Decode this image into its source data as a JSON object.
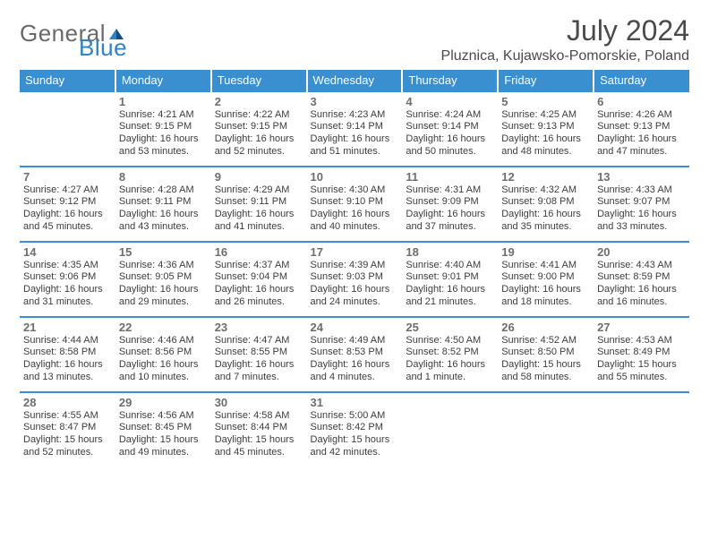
{
  "brand": {
    "word1": "General",
    "word2": "Blue",
    "mark_color": "#1e6fb0"
  },
  "title": "July 2024",
  "location": "Pluznica, Kujawsko-Pomorskie, Poland",
  "colors": {
    "header_bg": "#3a8fd0",
    "header_text": "#ffffff",
    "row_divider": "#3a8fd0",
    "body_text": "#3d3d3d",
    "muted_text": "#6e6e6e",
    "page_bg": "#ffffff"
  },
  "typography": {
    "title_fontsize": 32,
    "location_fontsize": 16,
    "weekday_fontsize": 13,
    "daynum_fontsize": 13,
    "body_fontsize": 11
  },
  "labels": {
    "sunrise": "Sunrise:",
    "sunset": "Sunset:",
    "daylight": "Daylight:"
  },
  "weekdays": [
    "Sunday",
    "Monday",
    "Tuesday",
    "Wednesday",
    "Thursday",
    "Friday",
    "Saturday"
  ],
  "weeks": [
    [
      null,
      {
        "n": "1",
        "sunrise": "4:21 AM",
        "sunset": "9:15 PM",
        "daylight_l1": "16 hours",
        "daylight_l2": "and 53 minutes."
      },
      {
        "n": "2",
        "sunrise": "4:22 AM",
        "sunset": "9:15 PM",
        "daylight_l1": "16 hours",
        "daylight_l2": "and 52 minutes."
      },
      {
        "n": "3",
        "sunrise": "4:23 AM",
        "sunset": "9:14 PM",
        "daylight_l1": "16 hours",
        "daylight_l2": "and 51 minutes."
      },
      {
        "n": "4",
        "sunrise": "4:24 AM",
        "sunset": "9:14 PM",
        "daylight_l1": "16 hours",
        "daylight_l2": "and 50 minutes."
      },
      {
        "n": "5",
        "sunrise": "4:25 AM",
        "sunset": "9:13 PM",
        "daylight_l1": "16 hours",
        "daylight_l2": "and 48 minutes."
      },
      {
        "n": "6",
        "sunrise": "4:26 AM",
        "sunset": "9:13 PM",
        "daylight_l1": "16 hours",
        "daylight_l2": "and 47 minutes."
      }
    ],
    [
      {
        "n": "7",
        "sunrise": "4:27 AM",
        "sunset": "9:12 PM",
        "daylight_l1": "16 hours",
        "daylight_l2": "and 45 minutes."
      },
      {
        "n": "8",
        "sunrise": "4:28 AM",
        "sunset": "9:11 PM",
        "daylight_l1": "16 hours",
        "daylight_l2": "and 43 minutes."
      },
      {
        "n": "9",
        "sunrise": "4:29 AM",
        "sunset": "9:11 PM",
        "daylight_l1": "16 hours",
        "daylight_l2": "and 41 minutes."
      },
      {
        "n": "10",
        "sunrise": "4:30 AM",
        "sunset": "9:10 PM",
        "daylight_l1": "16 hours",
        "daylight_l2": "and 40 minutes."
      },
      {
        "n": "11",
        "sunrise": "4:31 AM",
        "sunset": "9:09 PM",
        "daylight_l1": "16 hours",
        "daylight_l2": "and 37 minutes."
      },
      {
        "n": "12",
        "sunrise": "4:32 AM",
        "sunset": "9:08 PM",
        "daylight_l1": "16 hours",
        "daylight_l2": "and 35 minutes."
      },
      {
        "n": "13",
        "sunrise": "4:33 AM",
        "sunset": "9:07 PM",
        "daylight_l1": "16 hours",
        "daylight_l2": "and 33 minutes."
      }
    ],
    [
      {
        "n": "14",
        "sunrise": "4:35 AM",
        "sunset": "9:06 PM",
        "daylight_l1": "16 hours",
        "daylight_l2": "and 31 minutes."
      },
      {
        "n": "15",
        "sunrise": "4:36 AM",
        "sunset": "9:05 PM",
        "daylight_l1": "16 hours",
        "daylight_l2": "and 29 minutes."
      },
      {
        "n": "16",
        "sunrise": "4:37 AM",
        "sunset": "9:04 PM",
        "daylight_l1": "16 hours",
        "daylight_l2": "and 26 minutes."
      },
      {
        "n": "17",
        "sunrise": "4:39 AM",
        "sunset": "9:03 PM",
        "daylight_l1": "16 hours",
        "daylight_l2": "and 24 minutes."
      },
      {
        "n": "18",
        "sunrise": "4:40 AM",
        "sunset": "9:01 PM",
        "daylight_l1": "16 hours",
        "daylight_l2": "and 21 minutes."
      },
      {
        "n": "19",
        "sunrise": "4:41 AM",
        "sunset": "9:00 PM",
        "daylight_l1": "16 hours",
        "daylight_l2": "and 18 minutes."
      },
      {
        "n": "20",
        "sunrise": "4:43 AM",
        "sunset": "8:59 PM",
        "daylight_l1": "16 hours",
        "daylight_l2": "and 16 minutes."
      }
    ],
    [
      {
        "n": "21",
        "sunrise": "4:44 AM",
        "sunset": "8:58 PM",
        "daylight_l1": "16 hours",
        "daylight_l2": "and 13 minutes."
      },
      {
        "n": "22",
        "sunrise": "4:46 AM",
        "sunset": "8:56 PM",
        "daylight_l1": "16 hours",
        "daylight_l2": "and 10 minutes."
      },
      {
        "n": "23",
        "sunrise": "4:47 AM",
        "sunset": "8:55 PM",
        "daylight_l1": "16 hours",
        "daylight_l2": "and 7 minutes."
      },
      {
        "n": "24",
        "sunrise": "4:49 AM",
        "sunset": "8:53 PM",
        "daylight_l1": "16 hours",
        "daylight_l2": "and 4 minutes."
      },
      {
        "n": "25",
        "sunrise": "4:50 AM",
        "sunset": "8:52 PM",
        "daylight_l1": "16 hours",
        "daylight_l2": "and 1 minute."
      },
      {
        "n": "26",
        "sunrise": "4:52 AM",
        "sunset": "8:50 PM",
        "daylight_l1": "15 hours",
        "daylight_l2": "and 58 minutes."
      },
      {
        "n": "27",
        "sunrise": "4:53 AM",
        "sunset": "8:49 PM",
        "daylight_l1": "15 hours",
        "daylight_l2": "and 55 minutes."
      }
    ],
    [
      {
        "n": "28",
        "sunrise": "4:55 AM",
        "sunset": "8:47 PM",
        "daylight_l1": "15 hours",
        "daylight_l2": "and 52 minutes."
      },
      {
        "n": "29",
        "sunrise": "4:56 AM",
        "sunset": "8:45 PM",
        "daylight_l1": "15 hours",
        "daylight_l2": "and 49 minutes."
      },
      {
        "n": "30",
        "sunrise": "4:58 AM",
        "sunset": "8:44 PM",
        "daylight_l1": "15 hours",
        "daylight_l2": "and 45 minutes."
      },
      {
        "n": "31",
        "sunrise": "5:00 AM",
        "sunset": "8:42 PM",
        "daylight_l1": "15 hours",
        "daylight_l2": "and 42 minutes."
      },
      null,
      null,
      null
    ]
  ]
}
